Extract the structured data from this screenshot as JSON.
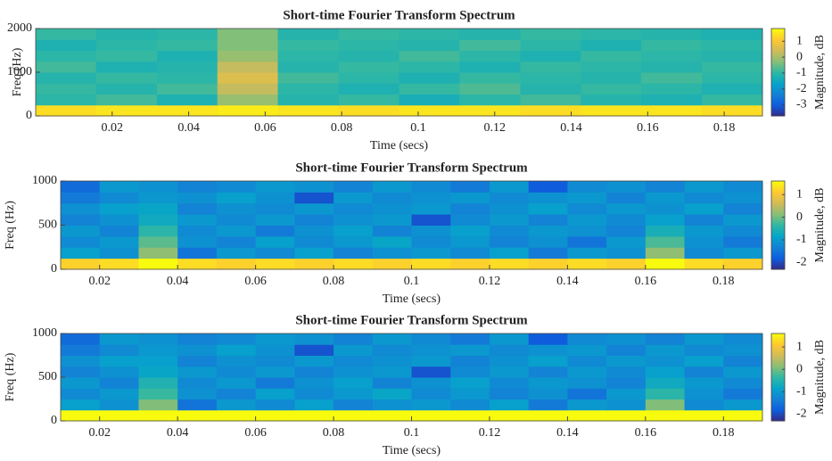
{
  "chart_data": [
    {
      "type": "heatmap",
      "title": "Short-time Fourier Transform Spectrum",
      "xlabel": "Time (secs)",
      "ylabel": "Freq (Hz)",
      "xlim": [
        0,
        0.19
      ],
      "ylim": [
        0,
        2000
      ],
      "xticks": [
        0.02,
        0.04,
        0.06,
        0.08,
        0.1,
        0.12,
        0.14,
        0.16,
        0.18
      ],
      "yticks": [
        0,
        1000,
        2000
      ],
      "xbins": [
        0,
        0.0158,
        0.0317,
        0.0475,
        0.0633,
        0.0792,
        0.095,
        0.1108,
        0.1267,
        0.1425,
        0.1583,
        0.1742,
        0.19
      ],
      "ybins": [
        0,
        250,
        500,
        750,
        1000,
        1250,
        1500,
        1750,
        2000
      ],
      "values": [
        [
          1.4,
          1.5,
          1.5,
          1.6,
          1.5,
          1.4,
          1.5,
          1.5,
          1.4,
          1.5,
          1.5,
          1.4
        ],
        [
          -1.0,
          -0.8,
          -1.2,
          -0.1,
          -1.1,
          -0.9,
          -1.3,
          -1.0,
          -0.8,
          -1.1,
          -1.2,
          -0.9
        ],
        [
          -0.9,
          -1.1,
          -0.8,
          0.3,
          -1.0,
          -1.2,
          -0.9,
          -0.7,
          -1.1,
          -0.9,
          -1.0,
          -1.2
        ],
        [
          -1.1,
          -0.9,
          -1.0,
          0.6,
          -0.8,
          -1.0,
          -1.2,
          -0.9,
          -1.0,
          -1.1,
          -0.8,
          -1.0
        ],
        [
          -0.8,
          -1.2,
          -1.1,
          0.3,
          -1.1,
          -0.9,
          -1.0,
          -1.2,
          -0.9,
          -1.0,
          -1.1,
          -0.9
        ],
        [
          -1.0,
          -0.9,
          -1.2,
          -0.1,
          -1.0,
          -1.1,
          -0.8,
          -1.0,
          -1.2,
          -0.9,
          -1.0,
          -1.1
        ],
        [
          -1.2,
          -1.0,
          -0.9,
          -0.3,
          -0.9,
          -1.0,
          -1.1,
          -0.8,
          -1.0,
          -1.2,
          -0.9,
          -1.0
        ],
        [
          -0.9,
          -1.1,
          -1.0,
          -0.3,
          -1.1,
          -0.9,
          -1.0,
          -1.1,
          -0.9,
          -1.0,
          -1.1,
          -1.2
        ]
      ],
      "colorbar": {
        "label": "Magnitude, dB",
        "clim": [
          -3.7,
          1.8
        ],
        "ticks": [
          -3,
          -2,
          -1,
          0,
          1
        ]
      },
      "colormap": [
        "#352a87",
        "#0f5cdd",
        "#1481d6",
        "#06a4ca",
        "#2eb7a4",
        "#87bf77",
        "#d1bb59",
        "#fec832",
        "#f9fb0e"
      ]
    },
    {
      "type": "heatmap",
      "title": "Short-time Fourier Transform Spectrum",
      "xlabel": "Time (secs)",
      "ylabel": "Freq (Hz)",
      "xlim": [
        0.01,
        0.19
      ],
      "ylim": [
        0,
        1000
      ],
      "xticks": [
        0.02,
        0.04,
        0.06,
        0.08,
        0.1,
        0.12,
        0.14,
        0.16,
        0.18
      ],
      "yticks": [
        0,
        500,
        1000
      ],
      "xbins": [
        0.01,
        0.02,
        0.03,
        0.04,
        0.05,
        0.06,
        0.07,
        0.08,
        0.09,
        0.1,
        0.11,
        0.12,
        0.13,
        0.14,
        0.15,
        0.16,
        0.17,
        0.18,
        0.19
      ],
      "ybins": [
        0,
        125,
        250,
        375,
        500,
        625,
        750,
        875,
        1000
      ],
      "values": [
        [
          1.2,
          1.3,
          1.7,
          1.3,
          1.2,
          1.3,
          1.2,
          1.3,
          1.2,
          1.3,
          1.2,
          1.3,
          1.2,
          1.3,
          1.2,
          1.7,
          1.3,
          1.2
        ],
        [
          -0.9,
          -1.1,
          0.2,
          -1.5,
          -1.0,
          -1.2,
          -0.9,
          -1.3,
          -1.1,
          -1.0,
          -1.2,
          -0.9,
          -1.4,
          -1.0,
          -1.1,
          0.2,
          -1.2,
          -1.0
        ],
        [
          -1.2,
          -1.0,
          -0.1,
          -1.1,
          -1.3,
          -0.9,
          -1.2,
          -1.0,
          -0.8,
          -1.2,
          -1.0,
          -1.3,
          -1.1,
          -1.5,
          -1.0,
          -0.2,
          -1.1,
          -1.4
        ],
        [
          -1.0,
          -1.3,
          -0.4,
          -1.2,
          -1.0,
          -1.4,
          -1.1,
          -0.9,
          -1.3,
          -1.1,
          -0.9,
          -1.2,
          -1.0,
          -1.1,
          -1.3,
          -0.6,
          -1.0,
          -1.2
        ],
        [
          -1.3,
          -1.1,
          -0.7,
          -1.0,
          -1.2,
          -1.0,
          -1.3,
          -1.1,
          -1.0,
          -1.9,
          -1.2,
          -1.0,
          -1.3,
          -1.0,
          -1.2,
          -0.9,
          -1.3,
          -1.0
        ],
        [
          -1.1,
          -0.9,
          -0.8,
          -1.3,
          -1.1,
          -1.2,
          -1.0,
          -1.2,
          -1.1,
          -1.0,
          -1.3,
          -1.1,
          -0.9,
          -1.2,
          -1.0,
          -1.1,
          -0.9,
          -1.3
        ],
        [
          -1.4,
          -1.2,
          -1.0,
          -1.1,
          -0.9,
          -1.1,
          -1.9,
          -1.0,
          -1.2,
          -1.1,
          -1.0,
          -1.2,
          -1.1,
          -1.0,
          -1.3,
          -1.0,
          -1.2,
          -1.1
        ],
        [
          -1.6,
          -1.0,
          -1.1,
          -1.3,
          -1.2,
          -1.0,
          -1.1,
          -1.3,
          -1.0,
          -1.2,
          -1.4,
          -1.0,
          -1.8,
          -1.2,
          -1.1,
          -1.3,
          -1.0,
          -1.2
        ]
      ],
      "colorbar": {
        "label": "Magnitude, dB",
        "clim": [
          -2.3,
          1.6
        ],
        "ticks": [
          -2,
          -1,
          0,
          1
        ]
      },
      "colormap": [
        "#352a87",
        "#0f5cdd",
        "#1481d6",
        "#06a4ca",
        "#2eb7a4",
        "#87bf77",
        "#d1bb59",
        "#fec832",
        "#f9fb0e"
      ]
    },
    {
      "type": "heatmap",
      "title": "Short-time Fourier Transform Spectrum",
      "xlabel": "Time (secs)",
      "ylabel": "Freq (Hz)",
      "xlim": [
        0.01,
        0.19
      ],
      "ylim": [
        0,
        1000
      ],
      "xticks": [
        0.02,
        0.04,
        0.06,
        0.08,
        0.1,
        0.12,
        0.14,
        0.16,
        0.18
      ],
      "yticks": [
        0,
        500,
        1000
      ],
      "xbins": [
        0.01,
        0.02,
        0.03,
        0.04,
        0.05,
        0.06,
        0.07,
        0.08,
        0.09,
        0.1,
        0.11,
        0.12,
        0.13,
        0.14,
        0.15,
        0.16,
        0.17,
        0.18,
        0.19
      ],
      "ybins": [
        0,
        125,
        250,
        375,
        500,
        625,
        750,
        875,
        1000
      ],
      "values": [
        [
          1.6,
          1.6,
          1.8,
          1.6,
          1.6,
          1.6,
          1.6,
          1.6,
          1.6,
          1.6,
          1.6,
          1.6,
          1.6,
          1.6,
          1.6,
          1.8,
          1.6,
          1.6
        ],
        [
          -0.9,
          -1.1,
          0.1,
          -1.5,
          -1.0,
          -1.2,
          -0.9,
          -1.3,
          -1.1,
          -1.0,
          -1.2,
          -0.9,
          -1.4,
          -1.0,
          -1.1,
          0.1,
          -1.2,
          -1.0
        ],
        [
          -1.2,
          -1.0,
          -0.3,
          -1.1,
          -1.3,
          -0.9,
          -1.2,
          -1.0,
          -0.8,
          -1.2,
          -1.0,
          -1.3,
          -1.1,
          -1.5,
          -1.0,
          -0.4,
          -1.1,
          -1.4
        ],
        [
          -1.0,
          -1.3,
          -0.5,
          -1.2,
          -1.0,
          -1.4,
          -1.1,
          -0.9,
          -1.3,
          -1.1,
          -0.9,
          -1.2,
          -1.0,
          -1.1,
          -1.3,
          -0.7,
          -1.0,
          -1.2
        ],
        [
          -1.3,
          -1.1,
          -0.8,
          -1.0,
          -1.2,
          -1.0,
          -1.3,
          -1.1,
          -1.0,
          -1.9,
          -1.2,
          -1.0,
          -1.3,
          -1.0,
          -1.2,
          -0.9,
          -1.3,
          -1.0
        ],
        [
          -1.1,
          -0.9,
          -0.9,
          -1.3,
          -1.1,
          -1.2,
          -1.0,
          -1.2,
          -1.1,
          -1.0,
          -1.3,
          -1.1,
          -0.9,
          -1.2,
          -1.0,
          -1.1,
          -0.9,
          -1.3
        ],
        [
          -1.4,
          -1.2,
          -1.0,
          -1.1,
          -0.9,
          -1.1,
          -1.9,
          -1.0,
          -1.2,
          -1.1,
          -1.0,
          -1.2,
          -1.1,
          -1.0,
          -1.3,
          -1.0,
          -1.2,
          -1.1
        ],
        [
          -1.6,
          -1.0,
          -1.1,
          -1.3,
          -1.2,
          -1.0,
          -1.1,
          -1.3,
          -1.0,
          -1.2,
          -1.4,
          -1.0,
          -1.8,
          -1.2,
          -1.1,
          -1.3,
          -1.0,
          -1.2
        ]
      ],
      "colorbar": {
        "label": "Magnitude, dB",
        "clim": [
          -2.3,
          1.6
        ],
        "ticks": [
          -2,
          -1,
          0,
          1
        ]
      },
      "colormap": [
        "#352a87",
        "#0f5cdd",
        "#1481d6",
        "#06a4ca",
        "#2eb7a4",
        "#87bf77",
        "#d1bb59",
        "#fec832",
        "#f9fb0e"
      ]
    }
  ]
}
